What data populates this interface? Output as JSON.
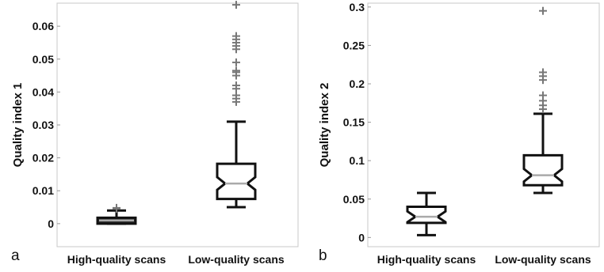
{
  "chart_data": [
    {
      "panel_label": "a",
      "type": "boxplot",
      "ylabel": "Quality index 1",
      "ylim": [
        -0.007,
        0.067
      ],
      "yticks": [
        0,
        0.01,
        0.02,
        0.03,
        0.04,
        0.05,
        0.06
      ],
      "ytick_labels": [
        "0",
        "0.01",
        "0.02",
        "0.03",
        "0.04",
        "0.05",
        "0.06"
      ],
      "categories": [
        "High-quality scans",
        "Low-quality scans"
      ],
      "notched": true,
      "grid": false,
      "boxes": [
        {
          "whisker_low": 0.0,
          "q1": 0.0,
          "median": 0.001,
          "q3": 0.0018,
          "whisker_high": 0.004,
          "outliers": [
            0.0045,
            0.0048
          ]
        },
        {
          "whisker_low": 0.005,
          "q1": 0.0075,
          "median": 0.0122,
          "q3": 0.0182,
          "whisker_high": 0.031,
          "outliers": [
            0.037,
            0.038,
            0.039,
            0.041,
            0.042,
            0.045,
            0.046,
            0.0465,
            0.049,
            0.053,
            0.054,
            0.055,
            0.056,
            0.057,
            0.0665
          ]
        }
      ]
    },
    {
      "panel_label": "b",
      "type": "boxplot",
      "ylabel": "Quality index 2",
      "ylim": [
        -0.012,
        0.305
      ],
      "yticks": [
        0,
        0.05,
        0.1,
        0.15,
        0.2,
        0.25,
        0.3
      ],
      "ytick_labels": [
        "0",
        "0.05",
        "0.1",
        "0.15",
        "0.2",
        "0.25",
        "0.3"
      ],
      "categories": [
        "High-quality scans",
        "Low-quality scans"
      ],
      "notched": true,
      "grid": false,
      "boxes": [
        {
          "whisker_low": 0.003,
          "q1": 0.019,
          "median": 0.027,
          "q3": 0.04,
          "whisker_high": 0.058,
          "outliers": []
        },
        {
          "whisker_low": 0.058,
          "q1": 0.068,
          "median": 0.081,
          "q3": 0.107,
          "whisker_high": 0.161,
          "outliers": [
            0.167,
            0.172,
            0.178,
            0.185,
            0.205,
            0.21,
            0.215,
            0.295
          ]
        }
      ]
    }
  ]
}
